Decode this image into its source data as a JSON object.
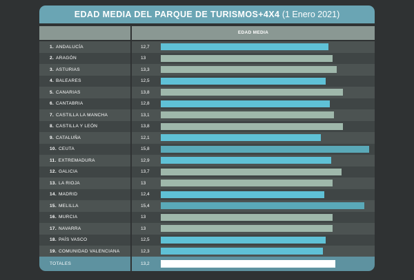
{
  "title": {
    "bold": "EDAD MEDIA DEL PARQUE DE TURISMOS+4X4",
    "light": "(1 Enero 2021)"
  },
  "header": {
    "label": "EDAD MEDIA"
  },
  "colors": {
    "blue": "#5fc1d6",
    "sage": "#9fb8ab",
    "teal": "#5aa9b8",
    "white": "#ffffff"
  },
  "chart_data": {
    "type": "bar",
    "title": "EDAD MEDIA DEL PARQUE DE TURISMOS+4X4 (1 Enero 2021)",
    "ylabel": "EDAD MEDIA",
    "xlim": [
      0,
      16.2
    ],
    "categories": [
      {
        "num": "1.",
        "name": "ANDALUCÍA",
        "value": 12.7,
        "label": "12,7",
        "color": "#5fc1d6"
      },
      {
        "num": "2.",
        "name": "ARAGÓN",
        "value": 13.0,
        "label": "13",
        "color": "#9fb8ab"
      },
      {
        "num": "3.",
        "name": "ASTURIAS",
        "value": 13.3,
        "label": "13,3",
        "color": "#9fb8ab"
      },
      {
        "num": "4.",
        "name": "BALEARES",
        "value": 12.5,
        "label": "12,5",
        "color": "#5fc1d6"
      },
      {
        "num": "5.",
        "name": "CANARIAS",
        "value": 13.8,
        "label": "13,8",
        "color": "#9fb8ab"
      },
      {
        "num": "6.",
        "name": "CANTABRIA",
        "value": 12.8,
        "label": "12,8",
        "color": "#5fc1d6"
      },
      {
        "num": "7.",
        "name": "CASTILLA LA MANCHA",
        "value": 13.1,
        "label": "13,1",
        "color": "#9fb8ab"
      },
      {
        "num": "8.",
        "name": "CASTILLA Y LEÓN",
        "value": 13.8,
        "label": "13,8",
        "color": "#9fb8ab"
      },
      {
        "num": "9.",
        "name": "CATALUÑA",
        "value": 12.1,
        "label": "12,1",
        "color": "#5fc1d6"
      },
      {
        "num": "10.",
        "name": "CEUTA",
        "value": 15.8,
        "label": "15,8",
        "color": "#5aa9b8"
      },
      {
        "num": "11.",
        "name": "EXTREMADURA",
        "value": 12.9,
        "label": "12,9",
        "color": "#5fc1d6"
      },
      {
        "num": "12.",
        "name": "GALICIA",
        "value": 13.7,
        "label": "13,7",
        "color": "#9fb8ab"
      },
      {
        "num": "13.",
        "name": "LA RIOJA",
        "value": 13.0,
        "label": "13",
        "color": "#9fb8ab"
      },
      {
        "num": "14.",
        "name": "MADRID",
        "value": 12.4,
        "label": "12,4",
        "color": "#5fc1d6"
      },
      {
        "num": "15.",
        "name": "MELILLA",
        "value": 15.4,
        "label": "15,4",
        "color": "#5aa9b8"
      },
      {
        "num": "16.",
        "name": "MURCIA",
        "value": 13.0,
        "label": "13",
        "color": "#9fb8ab"
      },
      {
        "num": "17.",
        "name": "NAVARRA",
        "value": 13.0,
        "label": "13",
        "color": "#9fb8ab"
      },
      {
        "num": "18.",
        "name": "PAÍS VASCO",
        "value": 12.5,
        "label": "12,5",
        "color": "#5fc1d6"
      },
      {
        "num": "19.",
        "name": "COMUNIDAD VALENCIANA",
        "value": 12.3,
        "label": "12,3",
        "color": "#5fc1d6"
      }
    ],
    "totals": {
      "name": "TOTALES",
      "value": 13.2,
      "label": "13,2",
      "color": "#ffffff"
    }
  }
}
